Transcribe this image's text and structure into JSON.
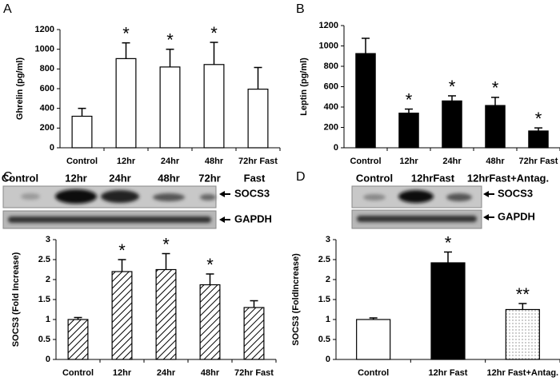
{
  "chart_data": [
    {
      "type": "bar",
      "panel": "A",
      "y_label": "Ghrelin (pg/ml)",
      "categories": [
        "Control",
        "12hr",
        "24hr",
        "48hr",
        "72hr Fast"
      ],
      "values": [
        320,
        905,
        820,
        845,
        595
      ],
      "errors": [
        80,
        160,
        180,
        225,
        220
      ],
      "annotations": [
        null,
        "*",
        "*",
        "*",
        null
      ],
      "fill": "white",
      "ylim": [
        0,
        1200
      ],
      "yticks": [
        0,
        200,
        400,
        600,
        800,
        1000,
        1200
      ]
    },
    {
      "type": "bar",
      "panel": "B",
      "y_label": "Leptin (pg/ml)",
      "categories": [
        "Control",
        "12hr",
        "24hr",
        "48hr",
        "72hr Fast"
      ],
      "values": [
        925,
        340,
        460,
        415,
        165
      ],
      "errors": [
        150,
        40,
        50,
        80,
        30
      ],
      "annotations": [
        null,
        "*",
        "*",
        "*",
        "*"
      ],
      "fill": "#000000",
      "ylim": [
        0,
        1200
      ],
      "yticks": [
        0,
        200,
        400,
        600,
        800,
        1000,
        1200
      ]
    },
    {
      "type": "bar",
      "y_label": "SOCS3 (Fold Increase)",
      "categories": [
        "Control",
        "12hr",
        "24hr",
        "48hr",
        "72hr Fast"
      ],
      "values": [
        1.0,
        2.2,
        2.25,
        1.87,
        1.3
      ],
      "errors": [
        0.05,
        0.3,
        0.4,
        0.27,
        0.17
      ],
      "annotations": [
        null,
        "*",
        "*",
        "*",
        null
      ],
      "fill": "hatched",
      "ylim": [
        0,
        3
      ],
      "yticks": [
        0,
        0.5,
        1,
        1.5,
        2,
        2.5,
        3
      ]
    },
    {
      "type": "bar",
      "y_label": "SOCS3 (FoldIncrease)",
      "categories": [
        "Control",
        "12hr Fast",
        "12hr Fast+Antag."
      ],
      "values": [
        1.0,
        2.42,
        1.25
      ],
      "errors": [
        0.04,
        0.27,
        0.15
      ],
      "annotations": [
        null,
        "*",
        "**"
      ],
      "fills": [
        "white",
        "#000000",
        "dotted"
      ],
      "ylim": [
        0,
        3
      ],
      "yticks": [
        0,
        0.5,
        1,
        1.5,
        2,
        2.5,
        3
      ]
    }
  ],
  "blots": [
    {
      "panel": "C",
      "lanes": [
        "Control",
        "12hr",
        "24hr",
        "48hr",
        "72hr",
        "Fast"
      ],
      "bands": [
        "SOCS3",
        "GAPDH"
      ]
    },
    {
      "panel": "D",
      "lanes": [
        "Control",
        "12hrFast",
        "12hrFast+Antag."
      ],
      "bands": [
        "SOCS3",
        "GAPDH"
      ]
    }
  ]
}
